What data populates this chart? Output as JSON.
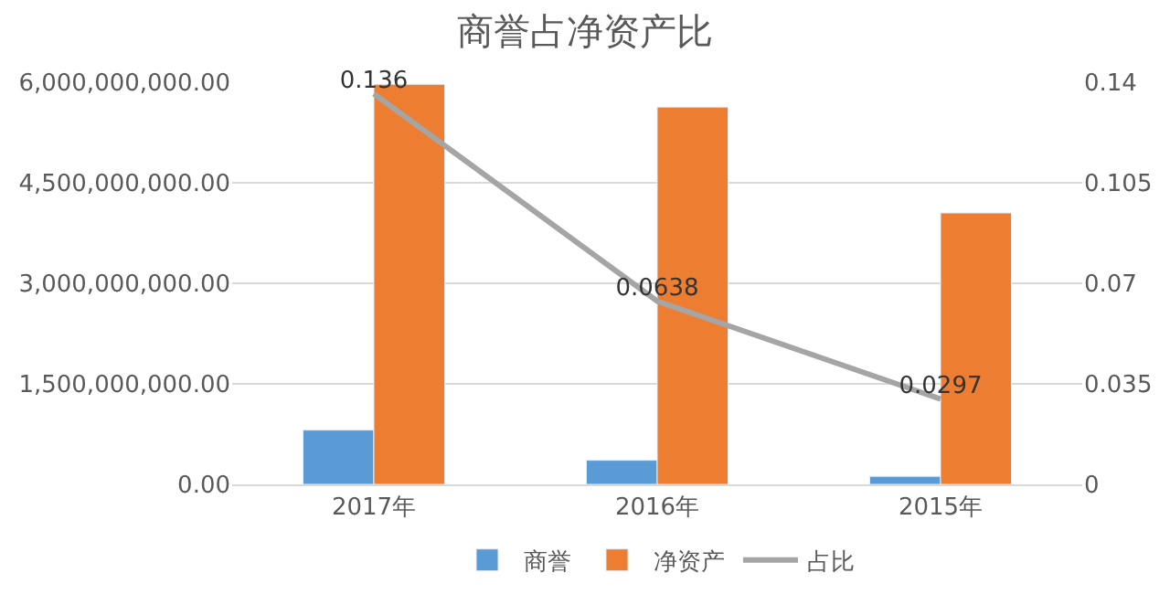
{
  "chart_data": {
    "type": "bar",
    "title": "商誉占净资产比",
    "categories": [
      "2017年",
      "2016年",
      "2015年"
    ],
    "series": [
      {
        "name": "商誉",
        "color": "#5b9bd5",
        "values": [
          810000000,
          360000000,
          120000000
        ]
      },
      {
        "name": "净资产",
        "color": "#ed7d31",
        "values": [
          5970000000,
          5630000000,
          4050000000
        ]
      },
      {
        "name": "占比",
        "type": "line",
        "axis": "y2",
        "color": "#a5a5a5",
        "values": [
          0.136,
          0.0638,
          0.0297
        ],
        "value_labels": [
          "0.136",
          "0.0638",
          "0.0297"
        ]
      }
    ],
    "ylim": [
      0,
      6000000000
    ],
    "yticks": [
      {
        "value": 0,
        "label": "0.00"
      },
      {
        "value": 1500000000,
        "label": "1,500,000,000.00"
      },
      {
        "value": 3000000000,
        "label": "3,000,000,000.00"
      },
      {
        "value": 4500000000,
        "label": "4,500,000,000.00"
      },
      {
        "value": 6000000000,
        "label": "6,000,000,000.00"
      }
    ],
    "y2lim": [
      0,
      0.14
    ],
    "y2ticks": [
      0,
      0.035,
      0.07,
      0.105,
      0.14
    ],
    "grid": "y",
    "legend": "bottom",
    "marker": "none",
    "line_style": "solid"
  }
}
